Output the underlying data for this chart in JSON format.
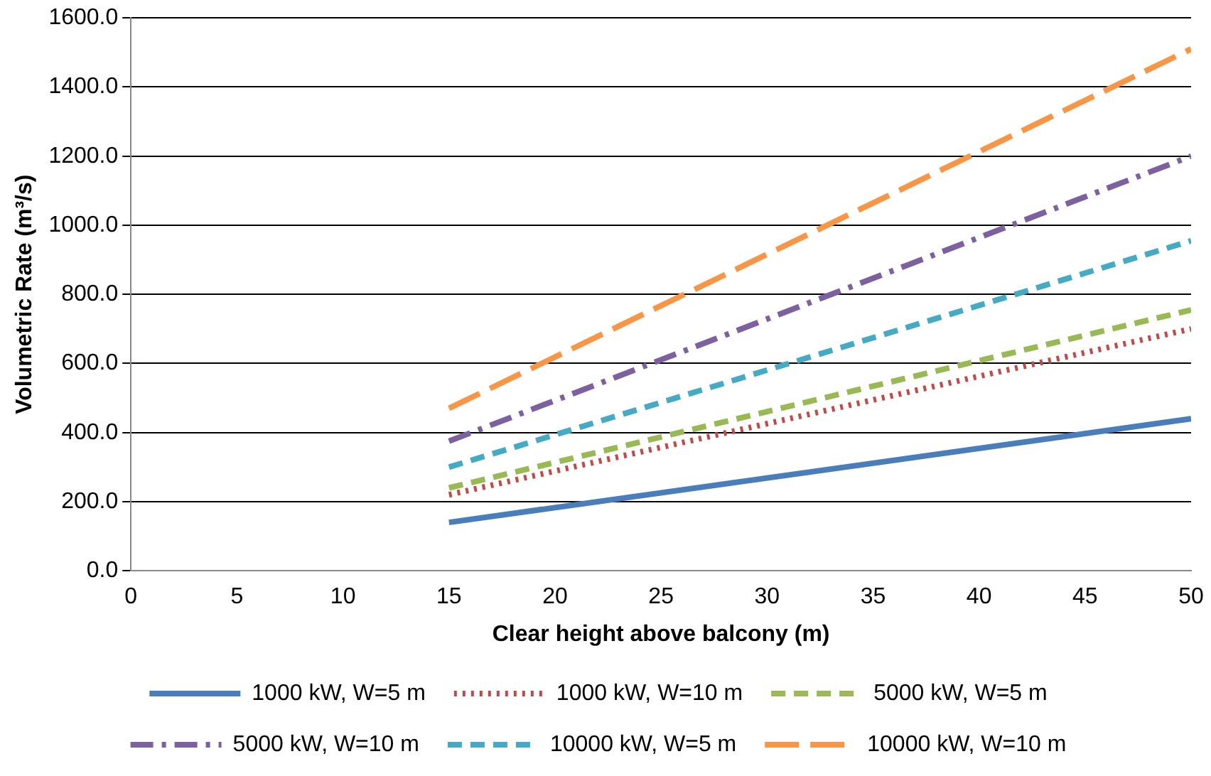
{
  "chart_data": {
    "type": "line",
    "xlabel": "Clear height above balcony (m)",
    "ylabel": "Volumetric Rate (m³/s)",
    "xlim": [
      0,
      50
    ],
    "xticks": [
      0,
      5,
      10,
      15,
      20,
      25,
      30,
      35,
      40,
      45,
      50
    ],
    "ylim": [
      0,
      1600
    ],
    "yticks": [
      {
        "value": 0,
        "label": "0.0"
      },
      {
        "value": 200,
        "label": "200.0"
      },
      {
        "value": 400,
        "label": "400.0"
      },
      {
        "value": 600,
        "label": "600.0"
      },
      {
        "value": 800,
        "label": "800.0"
      },
      {
        "value": 1000,
        "label": "1000.0"
      },
      {
        "value": 1200,
        "label": "1200.0"
      },
      {
        "value": 1400,
        "label": "1400.0"
      },
      {
        "value": 1600,
        "label": "1600.0"
      }
    ],
    "grid": "y",
    "legend": "bottom",
    "marker": "none",
    "x": [
      15,
      50
    ],
    "series": [
      {
        "name": "1000 kW, W=5 m",
        "color": "#4a7ebb",
        "line_style": "solid",
        "values": [
          140,
          440
        ]
      },
      {
        "name": "1000 kW, W=10 m",
        "color": "#be4b48",
        "line_style": "dotted",
        "values": [
          220,
          700
        ]
      },
      {
        "name": "5000 kW, W=5 m",
        "color": "#98b954",
        "line_style": "dashed",
        "values": [
          240,
          755
        ]
      },
      {
        "name": "5000 kW, W=10 m",
        "color": "#7d60a0",
        "line_style": "dashdot",
        "values": [
          375,
          1200
        ]
      },
      {
        "name": "10000 kW, W=5 m",
        "color": "#46aac5",
        "line_style": "dashed",
        "values": [
          300,
          955
        ]
      },
      {
        "name": "10000 kW, W=10 m",
        "color": "#f79646",
        "line_style": "longdash",
        "values": [
          470,
          1510
        ]
      }
    ]
  }
}
